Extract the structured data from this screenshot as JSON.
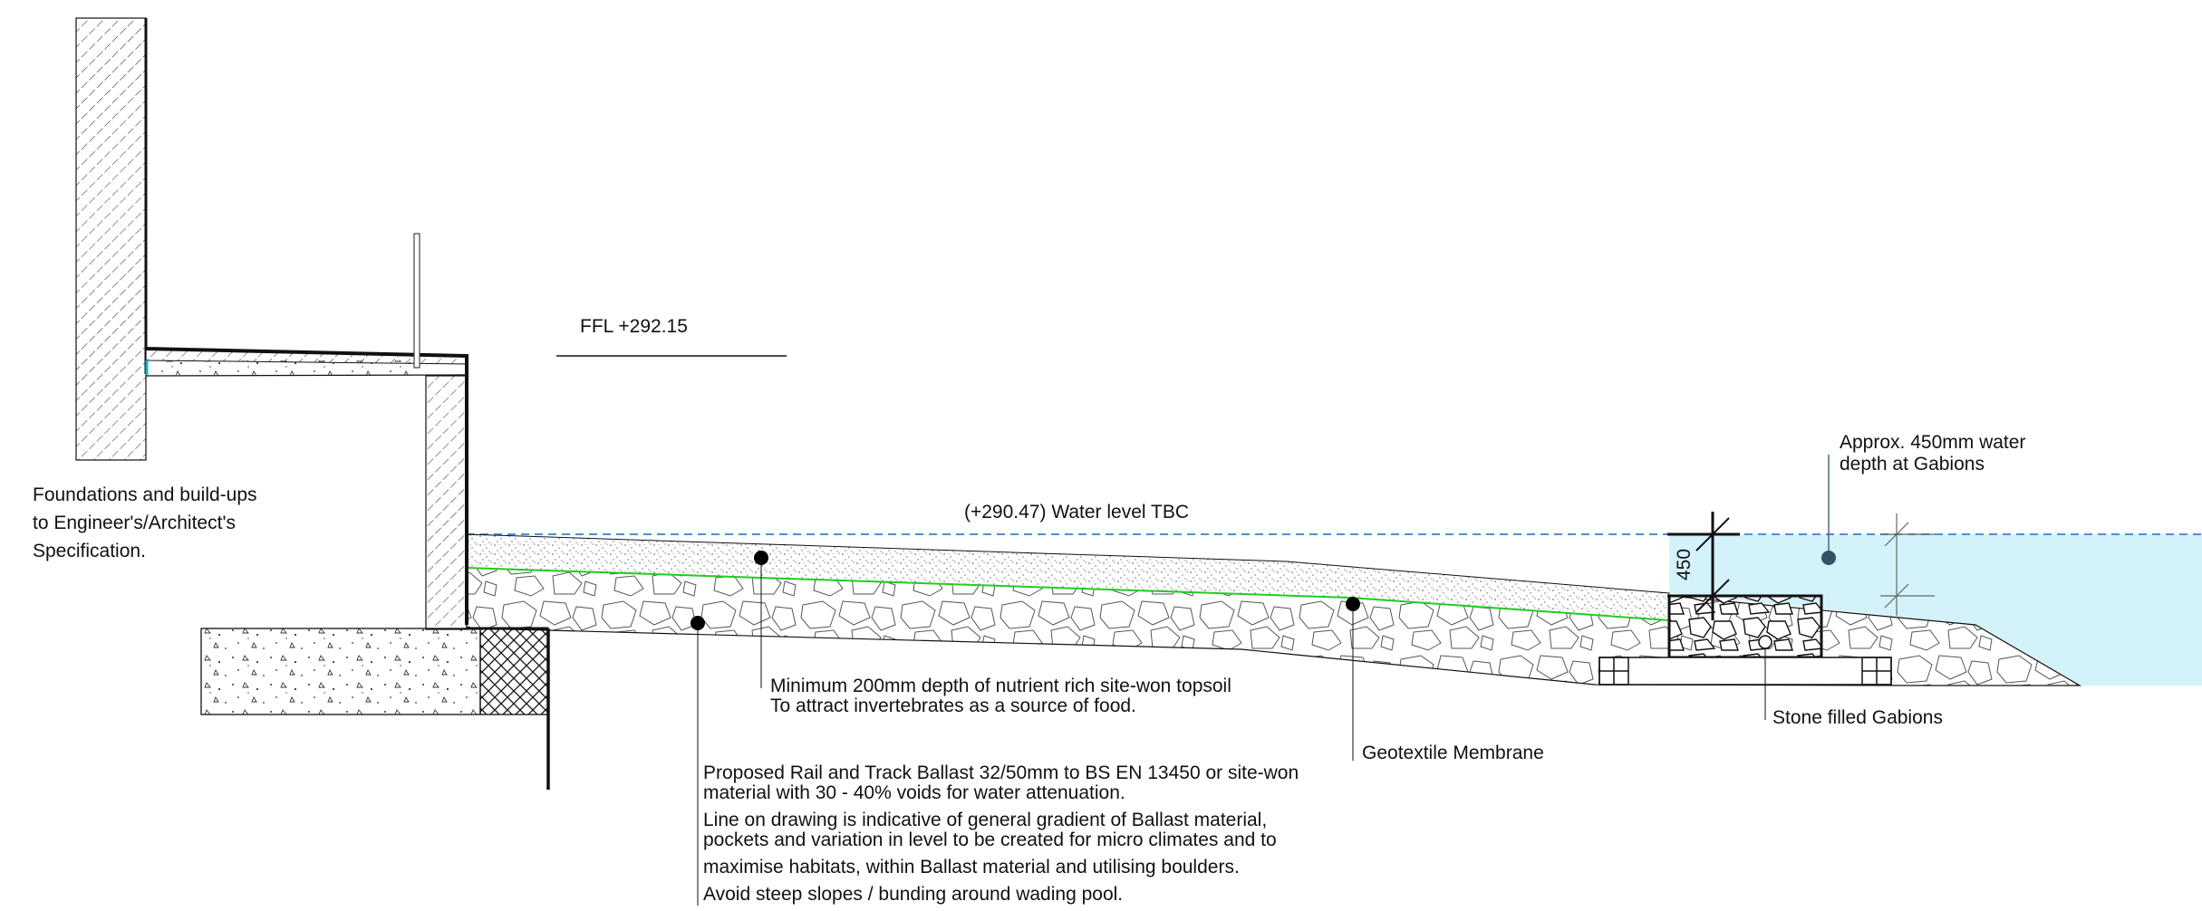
{
  "colors": {
    "water_fill": "#d4f2fa",
    "water_line": "#4a90d9",
    "membrane": "#22cc22",
    "line": "#111111",
    "marker": "#000000",
    "water_marker": "#2d5566"
  },
  "labels": {
    "ffl": "FFL +292.15",
    "water_level": "(+290.47) Water level TBC",
    "foundations": [
      "Foundations and build-ups",
      "to Engineer's/Architect's",
      "Specification."
    ],
    "water_depth": [
      "Approx. 450mm water",
      "depth at Gabions"
    ],
    "dimension": "450",
    "topsoil": [
      "Minimum 200mm depth of nutrient rich site-won topsoil",
      "To attract invertebrates as a source of food."
    ],
    "geotextile": "Geotextile Membrane",
    "gabions": "Stone filled Gabions",
    "ballast": [
      "Proposed Rail and Track Ballast 32/50mm to BS EN 13450 or site-won",
      "material with 30 - 40% voids for water attenuation.",
      "Line on drawing is indicative of general gradient of Ballast material,",
      "pockets and variation in level to be created for micro climates and to",
      "maximise habitats, within Ballast material and utilising boulders.",
      "Avoid steep slopes / bunding around wading pool."
    ]
  }
}
